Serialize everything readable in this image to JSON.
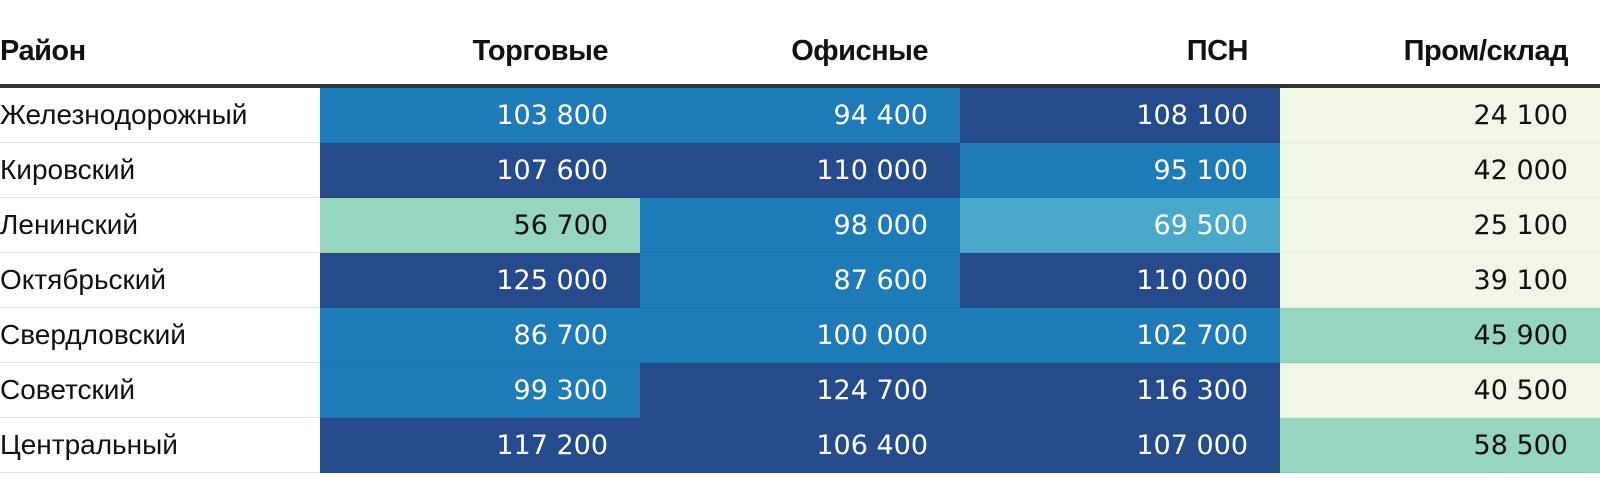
{
  "chart_data": {
    "type": "heatmap",
    "row_header": "Район",
    "columns": [
      "Торговые",
      "Офисные",
      "ПСН",
      "Пром/склад"
    ],
    "rows": [
      {
        "district": "Железнодорожный",
        "values": [
          103800,
          94400,
          108100,
          24100
        ],
        "labels": [
          "103 800",
          "94 400",
          "108 100",
          "24 100"
        ]
      },
      {
        "district": "Кировский",
        "values": [
          107600,
          110000,
          95100,
          42000
        ],
        "labels": [
          "107 600",
          "110 000",
          "95 100",
          "42 000"
        ]
      },
      {
        "district": "Ленинский",
        "values": [
          56700,
          98000,
          69500,
          25100
        ],
        "labels": [
          "56 700",
          "98 000",
          "69 500",
          "25 100"
        ]
      },
      {
        "district": "Октябрьский",
        "values": [
          125000,
          87600,
          110000,
          39100
        ],
        "labels": [
          "125 000",
          "87 600",
          "110 000",
          "39 100"
        ]
      },
      {
        "district": "Свердловский",
        "values": [
          86700,
          100000,
          102700,
          45900
        ],
        "labels": [
          "86 700",
          "100 000",
          "102 700",
          "45 900"
        ]
      },
      {
        "district": "Советский",
        "values": [
          99300,
          124700,
          116300,
          40500
        ],
        "labels": [
          "99 300",
          "124 700",
          "116 300",
          "40 500"
        ]
      },
      {
        "district": "Центральный",
        "values": [
          117200,
          106400,
          107000,
          58500
        ],
        "labels": [
          "117 200",
          "106 400",
          "107 000",
          "58 500"
        ]
      }
    ],
    "color_scale": {
      "dark": "#254b8c",
      "mid": "#1f7ab8",
      "light_mid": "#4aa8cb",
      "pale": "#97d5c1",
      "palest": "#eff7e7"
    }
  }
}
